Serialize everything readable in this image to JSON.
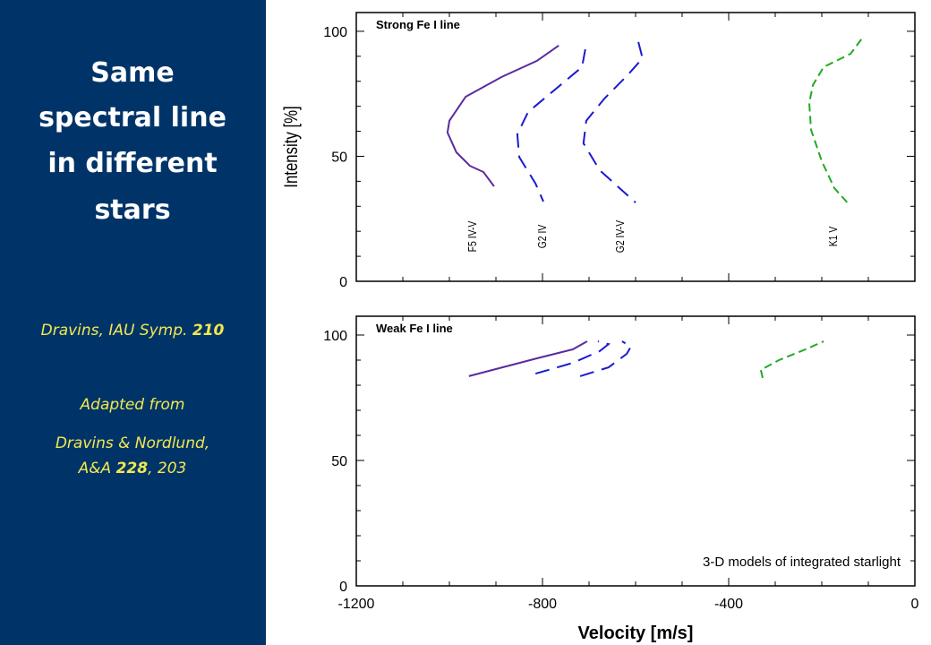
{
  "slide": {
    "title": [
      "Same",
      "spectral line",
      "in different",
      "stars"
    ],
    "reference": {
      "text": "Dravins, IAU Symp.",
      "bold": "210"
    },
    "adapted": "Adapted from",
    "source": {
      "line1": "Dravins & Nordlund,",
      "journal": "A&A",
      "volume": "228",
      "page": ", 203"
    }
  },
  "chart_data": [
    {
      "type": "line",
      "title": "Strong Fe I line",
      "ylabel": "Intensity [%]",
      "xlim": [
        -1200,
        0
      ],
      "xticks": [
        -1200,
        -800,
        -400,
        0
      ],
      "xtick_labels": false,
      "ylim": [
        0,
        107.5
      ],
      "yticks": [
        0,
        50,
        100
      ],
      "series": [
        {
          "name": "F5 IV-V",
          "color": "#5a2aa0",
          "linestyle": "solid",
          "x": [
            -765,
            -812,
            -888,
            -965,
            -1000,
            -1004,
            -985,
            -956,
            -927,
            -904
          ],
          "values": [
            94.3,
            88.2,
            81.7,
            73.8,
            64.2,
            59.5,
            51.6,
            46.2,
            43.7,
            38.0
          ]
        },
        {
          "name": "G2 IV",
          "color": "#1a1ad0",
          "linestyle": "dashed",
          "x": [
            -708,
            -715,
            -773,
            -831,
            -854,
            -850,
            -815,
            -798
          ],
          "values": [
            92.8,
            85.7,
            76.7,
            67.7,
            58.8,
            49.7,
            39.1,
            31.9
          ]
        },
        {
          "name": "G2 IV-V",
          "color": "#1a1ad0",
          "linestyle": "dashed",
          "x": [
            -594,
            -585,
            -619,
            -667,
            -706,
            -712,
            -677,
            -600
          ],
          "values": [
            95.7,
            89.2,
            82.1,
            73.1,
            64.2,
            55.2,
            44.4,
            31.5
          ]
        },
        {
          "name": "K1 V",
          "color": "#22aa22",
          "linestyle": "short-dashed",
          "x": [
            -115,
            -138,
            -196,
            -219,
            -227,
            -223,
            -200,
            -173,
            -142
          ],
          "values": [
            96.8,
            91.0,
            85.7,
            78.5,
            71.3,
            60.6,
            48.0,
            37.3,
            30.8
          ]
        }
      ]
    },
    {
      "type": "line",
      "title": "Weak Fe I line",
      "xlabel": "Velocity [m/s]",
      "annotation": "3-D models of integrated starlight",
      "xlim": [
        -1200,
        0
      ],
      "xticks": [
        -1200,
        -800,
        -400,
        0
      ],
      "xtick_labels": true,
      "ylim": [
        0,
        107.5
      ],
      "yticks": [
        0,
        50,
        100
      ],
      "series": [
        {
          "color": "#5a2aa0",
          "linestyle": "solid",
          "x": [
            -958,
            -812,
            -735,
            -704
          ],
          "values": [
            83.6,
            90.7,
            94.3,
            97.5
          ]
        },
        {
          "color": "#1a1ad0",
          "linestyle": "dashed",
          "x": [
            -815,
            -735,
            -677,
            -658,
            -681
          ],
          "values": [
            84.6,
            88.9,
            93.6,
            96.4,
            97.5
          ]
        },
        {
          "color": "#1a1ad0",
          "linestyle": "dashed",
          "x": [
            -719,
            -658,
            -619,
            -610,
            -629
          ],
          "values": [
            83.6,
            87.1,
            92.5,
            95.4,
            97.5
          ]
        },
        {
          "color": "#22aa22",
          "linestyle": "short-dashed",
          "x": [
            -327,
            -331,
            -292,
            -235,
            -196
          ],
          "values": [
            82.9,
            86.1,
            90.0,
            94.3,
            97.5
          ]
        }
      ]
    }
  ]
}
